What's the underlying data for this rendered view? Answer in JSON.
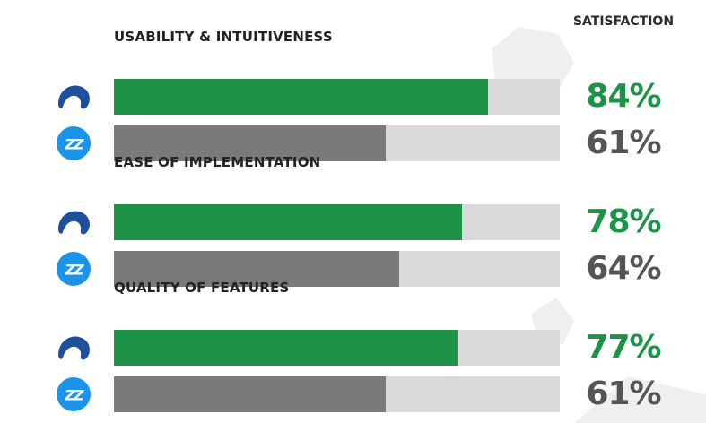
{
  "header": {
    "satisfaction_label": "SATISFACTION"
  },
  "colors": {
    "product_a": "#1e9348",
    "product_b": "#7a7a7a",
    "track": "#d9d9d9",
    "product_a_logo": "#1d4f9c",
    "product_b_logo": "#1a93e8"
  },
  "chart_data": {
    "type": "bar",
    "orientation": "horizontal",
    "ylim": [
      0,
      100
    ],
    "categories": [
      "USABILITY & INTUITIVENESS",
      "EASE OF IMPLEMENTATION",
      "QUALITY OF FEATURES"
    ],
    "series": [
      {
        "icon": "wave-logo-icon",
        "values": [
          84,
          78,
          77
        ]
      },
      {
        "icon": "zz-logo-icon",
        "values": [
          61,
          64,
          61
        ]
      }
    ],
    "value_labels": [
      [
        "84%",
        "61%"
      ],
      [
        "78%",
        "64%"
      ],
      [
        "77%",
        "61%"
      ]
    ]
  }
}
